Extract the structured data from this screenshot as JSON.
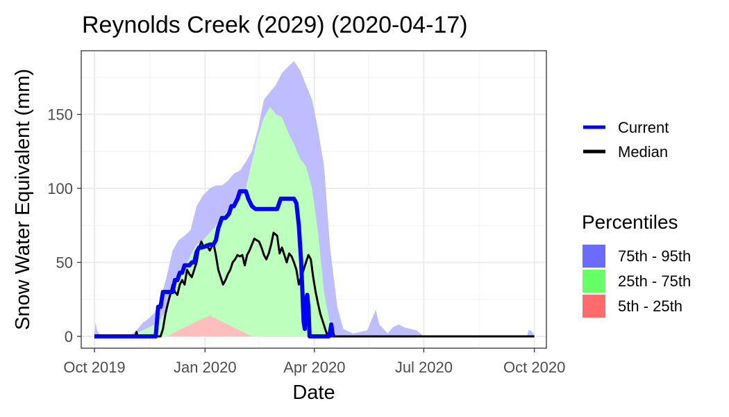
{
  "chart_data": {
    "type": "area",
    "title": "Reynolds Creek (2029) (2020-04-17)",
    "xlabel": "Date",
    "ylabel": "Snow Water Equivalent (mm)",
    "x_ticks": [
      "Oct 2019",
      "Jan 2020",
      "Apr 2020",
      "Jul 2020",
      "Oct 2020"
    ],
    "y_ticks": [
      0,
      50,
      100,
      150
    ],
    "xlim": [
      "2019-09-20",
      "2020-10-11"
    ],
    "ylim": [
      -8,
      193
    ],
    "grid": true,
    "legend": {
      "placement": "right",
      "lines": [
        {
          "label": "Current",
          "color": "#0000ff"
        },
        {
          "label": "Median",
          "color": "#000000"
        }
      ],
      "fill_title": "Percentiles",
      "fills": [
        {
          "label": "75th - 95th",
          "color": "#6b6bff"
        },
        {
          "label": "25th - 75th",
          "color": "#66ff66"
        },
        {
          "label": "5th - 25th",
          "color": "#ff6b6b"
        }
      ]
    },
    "bands": {
      "p95": {
        "x": [
          "2019-10-01",
          "2019-10-02",
          "2019-10-03",
          "2019-10-05",
          "2019-10-06",
          "2019-10-15",
          "2019-10-20",
          "2019-10-28",
          "2019-11-02",
          "2019-11-05",
          "2019-11-10",
          "2019-11-15",
          "2019-11-20",
          "2019-11-25",
          "2019-11-30",
          "2019-12-05",
          "2019-12-10",
          "2019-12-15",
          "2019-12-20",
          "2019-12-25",
          "2019-12-30",
          "2020-01-05",
          "2020-01-10",
          "2020-01-15",
          "2020-01-20",
          "2020-01-25",
          "2020-01-30",
          "2020-02-04",
          "2020-02-09",
          "2020-02-14",
          "2020-02-19",
          "2020-02-24",
          "2020-02-29",
          "2020-03-05",
          "2020-03-10",
          "2020-03-15",
          "2020-03-20",
          "2020-03-25",
          "2020-03-30",
          "2020-04-04",
          "2020-04-09",
          "2020-04-14",
          "2020-04-20",
          "2020-04-25",
          "2020-05-03",
          "2020-05-15",
          "2020-05-22",
          "2020-05-25",
          "2020-06-01",
          "2020-06-05",
          "2020-06-10",
          "2020-06-15",
          "2020-06-20",
          "2020-06-25",
          "2020-07-01",
          "2020-09-25",
          "2020-09-26",
          "2020-09-28",
          "2020-09-30",
          "2020-10-01"
        ],
        "y": [
          0,
          10,
          4,
          2,
          0,
          0,
          0,
          0,
          2,
          4,
          9,
          12,
          16,
          25,
          40,
          58,
          65,
          68,
          72,
          88,
          95,
          100,
          102,
          102,
          105,
          110,
          112,
          118,
          125,
          140,
          160,
          165,
          170,
          178,
          182,
          186,
          180,
          170,
          160,
          140,
          115,
          60,
          20,
          5,
          2,
          4,
          18,
          8,
          2,
          6,
          8,
          6,
          5,
          4,
          0,
          0,
          4,
          4,
          2,
          0
        ]
      },
      "p75": {
        "x": [
          "2019-10-01",
          "2019-10-30",
          "2019-11-05",
          "2019-11-10",
          "2019-11-15",
          "2019-11-20",
          "2019-11-25",
          "2019-11-30",
          "2019-12-05",
          "2019-12-10",
          "2019-12-15",
          "2019-12-20",
          "2019-12-25",
          "2019-12-30",
          "2020-01-05",
          "2020-01-10",
          "2020-01-15",
          "2020-01-20",
          "2020-01-25",
          "2020-01-30",
          "2020-02-04",
          "2020-02-09",
          "2020-02-14",
          "2020-02-19",
          "2020-02-24",
          "2020-02-29",
          "2020-03-05",
          "2020-03-10",
          "2020-03-15",
          "2020-03-20",
          "2020-03-25",
          "2020-03-30",
          "2020-04-04",
          "2020-04-09",
          "2020-04-14",
          "2020-04-20",
          "2020-10-01"
        ],
        "y": [
          0,
          0,
          2,
          4,
          6,
          8,
          12,
          18,
          30,
          38,
          45,
          55,
          62,
          65,
          70,
          75,
          80,
          85,
          88,
          92,
          100,
          118,
          135,
          148,
          155,
          150,
          148,
          138,
          130,
          120,
          115,
          100,
          70,
          30,
          8,
          0,
          0
        ]
      },
      "p25": {
        "x": [
          "2019-10-01",
          "2019-11-25",
          "2019-11-30",
          "2019-12-05",
          "2019-12-10",
          "2019-12-15",
          "2019-12-20",
          "2019-12-25",
          "2019-12-30",
          "2020-01-05",
          "2020-01-10",
          "2020-01-15",
          "2020-01-20",
          "2020-01-25",
          "2020-01-30",
          "2020-02-04",
          "2020-02-09",
          "2020-02-14",
          "2020-02-19",
          "2020-02-24",
          "2020-02-29",
          "2020-03-05",
          "2020-03-10",
          "2020-03-15",
          "2020-03-20",
          "2020-03-25",
          "2020-03-30",
          "2020-04-04",
          "2020-04-10",
          "2020-10-01"
        ],
        "y": [
          0,
          0,
          4,
          8,
          12,
          16,
          18,
          20,
          22,
          26,
          30,
          32,
          30,
          34,
          36,
          38,
          40,
          38,
          42,
          44,
          38,
          42,
          40,
          40,
          38,
          36,
          40,
          26,
          0,
          0
        ]
      },
      "p5": {
        "x": [
          "2019-10-01",
          "2019-12-01",
          "2019-12-05",
          "2019-12-10",
          "2019-12-15",
          "2019-12-20",
          "2019-12-25",
          "2019-12-30",
          "2020-01-05",
          "2020-01-10",
          "2020-01-15",
          "2020-01-20",
          "2020-01-25",
          "2020-01-30",
          "2020-02-04",
          "2020-02-09",
          "2020-02-14",
          "2020-02-19",
          "2020-02-24",
          "2020-02-29",
          "2020-03-05",
          "2020-03-10",
          "2020-03-15",
          "2020-03-20",
          "2020-03-25",
          "2020-03-30",
          "2020-04-10",
          "2020-10-01"
        ],
        "y": [
          0,
          0,
          2,
          4,
          6,
          8,
          10,
          12,
          14,
          12,
          10,
          8,
          6,
          4,
          2,
          0,
          0,
          0,
          0,
          0,
          0,
          0,
          0,
          0,
          0,
          0,
          0,
          0
        ]
      }
    },
    "series": [
      {
        "name": "Current",
        "color": "#0000ff",
        "x": [
          "2019-10-01",
          "2019-11-19",
          "2019-11-21",
          "2019-11-23",
          "2019-11-25",
          "2019-11-27",
          "2019-11-29",
          "2019-12-01",
          "2019-12-03",
          "2019-12-05",
          "2019-12-07",
          "2019-12-09",
          "2019-12-11",
          "2019-12-13",
          "2019-12-15",
          "2019-12-17",
          "2019-12-19",
          "2019-12-21",
          "2019-12-23",
          "2019-12-25",
          "2019-12-27",
          "2019-12-29",
          "2020-01-02",
          "2020-01-05",
          "2020-01-08",
          "2020-01-10",
          "2020-01-12",
          "2020-01-15",
          "2020-01-18",
          "2020-01-21",
          "2020-01-23",
          "2020-01-25",
          "2020-01-28",
          "2020-01-30",
          "2020-02-01",
          "2020-02-04",
          "2020-02-06",
          "2020-02-09",
          "2020-02-12",
          "2020-02-15",
          "2020-02-18",
          "2020-02-21",
          "2020-02-24",
          "2020-02-27",
          "2020-03-01",
          "2020-03-04",
          "2020-03-07",
          "2020-03-09",
          "2020-03-11",
          "2020-03-13",
          "2020-03-15",
          "2020-03-17",
          "2020-03-19",
          "2020-03-21",
          "2020-03-22",
          "2020-03-23",
          "2020-03-24",
          "2020-03-25",
          "2020-03-26",
          "2020-03-27",
          "2020-03-28",
          "2020-04-10",
          "2020-04-13",
          "2020-04-14",
          "2020-04-15",
          "2020-04-16",
          "2020-04-17"
        ],
        "y": [
          0,
          0,
          0,
          20,
          20,
          30,
          30,
          30,
          30,
          30,
          38,
          38,
          43,
          43,
          48,
          48,
          48,
          50,
          50,
          57,
          60,
          60,
          61,
          62,
          62,
          65,
          73,
          80,
          80,
          83,
          88,
          88,
          93,
          98,
          98,
          98,
          93,
          88,
          86,
          86,
          86,
          86,
          86,
          86,
          86,
          93,
          93,
          93,
          93,
          93,
          93,
          90,
          75,
          50,
          30,
          10,
          5,
          25,
          28,
          20,
          0,
          0,
          0,
          3,
          8,
          2,
          0
        ]
      },
      {
        "name": "Median",
        "color": "#000000",
        "x": [
          "2019-10-01",
          "2019-11-04",
          "2019-11-05",
          "2019-11-06",
          "2019-11-07",
          "2019-11-25",
          "2019-11-27",
          "2019-11-29",
          "2019-12-01",
          "2019-12-03",
          "2019-12-05",
          "2019-12-07",
          "2019-12-09",
          "2019-12-11",
          "2019-12-13",
          "2019-12-15",
          "2019-12-17",
          "2019-12-19",
          "2019-12-21",
          "2019-12-23",
          "2019-12-25",
          "2019-12-27",
          "2019-12-29",
          "2019-12-31",
          "2020-01-02",
          "2020-01-05",
          "2020-01-08",
          "2020-01-10",
          "2020-01-12",
          "2020-01-14",
          "2020-01-16",
          "2020-01-18",
          "2020-01-20",
          "2020-01-22",
          "2020-01-24",
          "2020-01-26",
          "2020-01-28",
          "2020-01-30",
          "2020-02-01",
          "2020-02-03",
          "2020-02-05",
          "2020-02-07",
          "2020-02-09",
          "2020-02-11",
          "2020-02-13",
          "2020-02-15",
          "2020-02-17",
          "2020-02-19",
          "2020-02-21",
          "2020-02-23",
          "2020-02-25",
          "2020-02-27",
          "2020-03-01",
          "2020-03-03",
          "2020-03-05",
          "2020-03-07",
          "2020-03-09",
          "2020-03-11",
          "2020-03-13",
          "2020-03-15",
          "2020-03-17",
          "2020-03-19",
          "2020-03-21",
          "2020-03-23",
          "2020-03-25",
          "2020-03-27",
          "2020-03-29",
          "2020-03-31",
          "2020-04-02",
          "2020-04-04",
          "2020-04-06",
          "2020-04-08",
          "2020-04-10",
          "2020-04-12",
          "2020-10-01"
        ],
        "y": [
          0,
          0,
          3,
          0,
          0,
          0,
          5,
          15,
          22,
          28,
          35,
          30,
          28,
          35,
          38,
          35,
          45,
          42,
          40,
          45,
          50,
          60,
          64,
          60,
          62,
          58,
          63,
          55,
          45,
          40,
          35,
          38,
          42,
          45,
          50,
          52,
          55,
          54,
          55,
          48,
          55,
          58,
          62,
          66,
          65,
          64,
          60,
          55,
          52,
          56,
          62,
          70,
          68,
          56,
          60,
          55,
          50,
          56,
          54,
          50,
          45,
          35,
          40,
          45,
          50,
          55,
          52,
          40,
          30,
          22,
          15,
          10,
          5,
          0,
          0
        ]
      }
    ]
  }
}
